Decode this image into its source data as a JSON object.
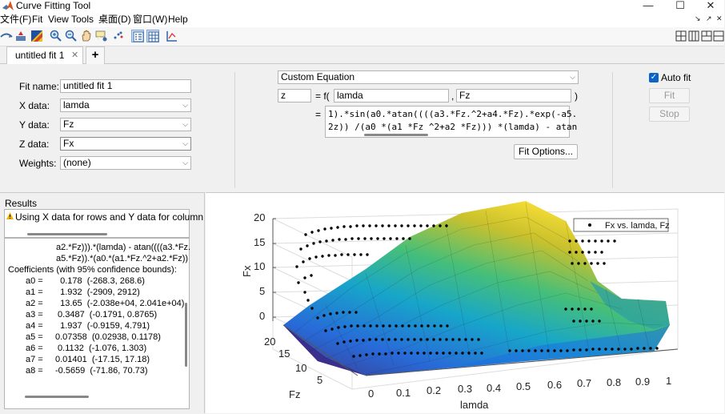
{
  "window": {
    "title": "Curve Fitting Tool",
    "controls": [
      "—",
      "☐",
      "✕"
    ]
  },
  "menu": {
    "items": [
      "文件(F)",
      "Fit",
      "View",
      "Tools",
      "桌面(D)",
      "窗口(W)",
      "Help"
    ],
    "right_glyphs": [
      "↘",
      "↗",
      "✕"
    ]
  },
  "toolbar": {
    "icons": [
      "pan-rotate-icon",
      "data-cursor-icon",
      "colormap-icon",
      "zoom-in-icon",
      "zoom-out-icon",
      "hand-pan-icon",
      "data-tips-icon",
      "exclude-outliers-icon",
      "legend-icon",
      "grid-icon",
      "axes-limits-icon"
    ],
    "layout_icons": [
      "grid-4-icon",
      "grid-cols-icon",
      "grid-rows-icon",
      "single-panel-icon"
    ]
  },
  "tabs": {
    "active_label": "untitled fit 1",
    "close_glyph": "✕",
    "add_glyph": "+"
  },
  "fit": {
    "name_label": "Fit name:",
    "name_value": "untitled fit 1",
    "x_label": "X data:",
    "x_value": "lamda",
    "y_label": "Y data:",
    "y_value": "Fz",
    "z_label": "Z data:",
    "z_value": "Fx",
    "weights_label": "Weights:",
    "weights_value": "(none)"
  },
  "equation": {
    "type": "Custom Equation",
    "output_var": "z",
    "f_prefix": "= f(",
    "arg1": "lamda",
    "comma": ",",
    "arg2": "Fz",
    "close_paren": ")",
    "equals": "=",
    "line1": "1).*sin(a0.*atan((((a3.*Fz.^2+a4.*Fz).*exp(-a5.",
    "line2": "2z)) /(a0 *(a1 *Fz ^2+a2 *Fz))) *(lamda) - atan",
    "fit_options_label": "Fit Options..."
  },
  "actions": {
    "auto_fit_label": "Auto fit",
    "fit_label": "Fit",
    "stop_label": "Stop"
  },
  "results": {
    "header": "Results",
    "warning": "Using X data for rows and Y data for column",
    "lines": [
      "a2.*Fz))).*(lamda) - atan((((a3.*Fz.",
      "a5.*Fz)).*(a0.*(a1.*Fz.^2+a2.*Fz))",
      "Coefficients (with 95% confidence bounds):",
      "a0 =       0.178  (-268.3, 268.6)",
      "a1 =       1.932  (-2909, 2912)",
      "a2 =       13.65  (-2.038e+04, 2.041e+04)",
      "a3 =      0.3487  (-0.1791, 0.8765)",
      "a4 =       1.937  (-0.9159, 4.791)",
      "a5 =     0.07358  (0.02938, 0.1178)",
      "a6 =      0.1132  (-1.076, 1.303)",
      "a7 =     0.01401  (-17.15, 17.18)",
      "a8 =     -0.5659  (-71.86, 70.73)"
    ]
  },
  "plot": {
    "z_label": "Fx",
    "y_label": "Fz",
    "x_label": "lamda",
    "z_ticks": [
      "20",
      "15",
      "10",
      "5",
      "0"
    ],
    "y_ticks": [
      "20",
      "15",
      "10",
      "5"
    ],
    "x_ticks": [
      "0",
      "0.1",
      "0.2",
      "0.3",
      "0.4",
      "0.5",
      "0.6",
      "0.7",
      "0.8",
      "0.9",
      "1"
    ],
    "legend": "Fx vs. lamda, Fz"
  },
  "chart_data": {
    "type": "scatter",
    "title": "",
    "xlabel": "lamda",
    "ylabel": "Fz",
    "zlabel": "Fx",
    "xlim": [
      0,
      1
    ],
    "ylim": [
      2,
      22
    ],
    "zlim": [
      -1,
      21
    ],
    "legend": "Fx vs. lamda, Fz",
    "legend_position": "top-right",
    "grid": true,
    "surface": "fitted custom equation surface (parula colormap)"
  }
}
